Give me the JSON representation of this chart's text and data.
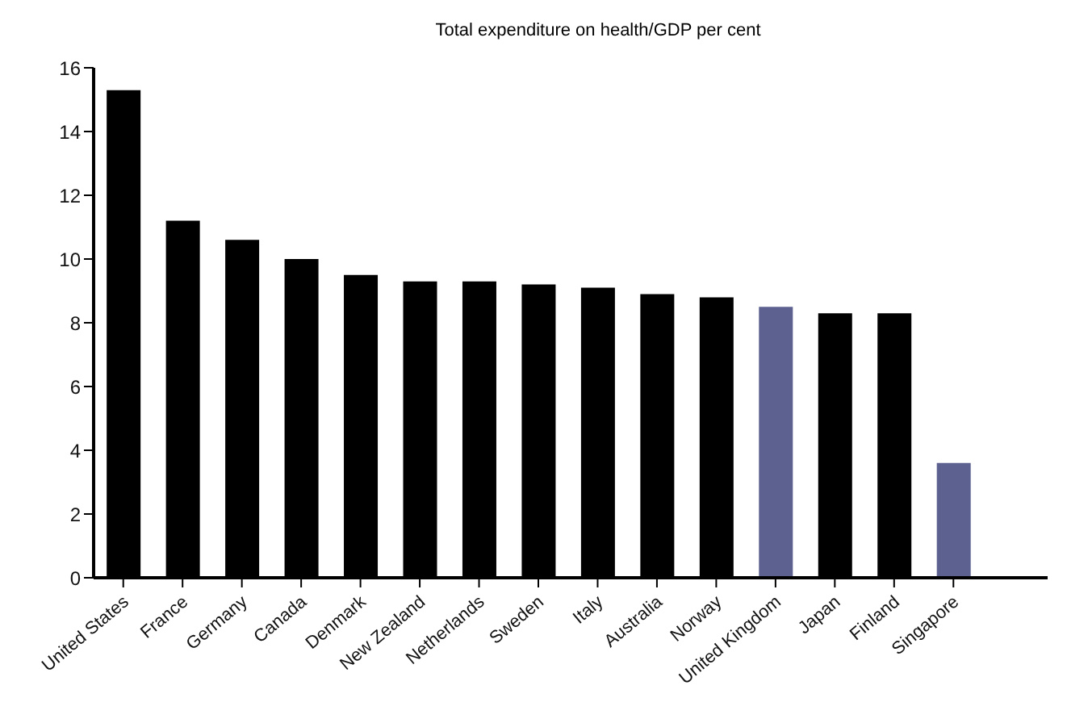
{
  "chart_data": {
    "type": "bar",
    "title": "Total expenditure on health/GDP per cent",
    "categories": [
      "United States",
      "France",
      "Germany",
      "Canada",
      "Denmark",
      "New Zealand",
      "Netherlands",
      "Sweden",
      "Italy",
      "Australia",
      "Norway",
      "United Kingdom",
      "Japan",
      "Finland",
      "Singapore"
    ],
    "values": [
      15.3,
      11.2,
      10.6,
      10.0,
      9.5,
      9.3,
      9.3,
      9.2,
      9.1,
      8.9,
      8.8,
      8.5,
      8.3,
      8.3,
      3.6
    ],
    "colors": [
      "#000000",
      "#000000",
      "#000000",
      "#000000",
      "#000000",
      "#000000",
      "#000000",
      "#000000",
      "#000000",
      "#000000",
      "#000000",
      "#5c6190",
      "#000000",
      "#000000",
      "#5c6190"
    ],
    "ylim": [
      0,
      16
    ],
    "yticks": [
      0,
      2,
      4,
      6,
      8,
      10,
      12,
      14,
      16
    ],
    "grid": false
  }
}
